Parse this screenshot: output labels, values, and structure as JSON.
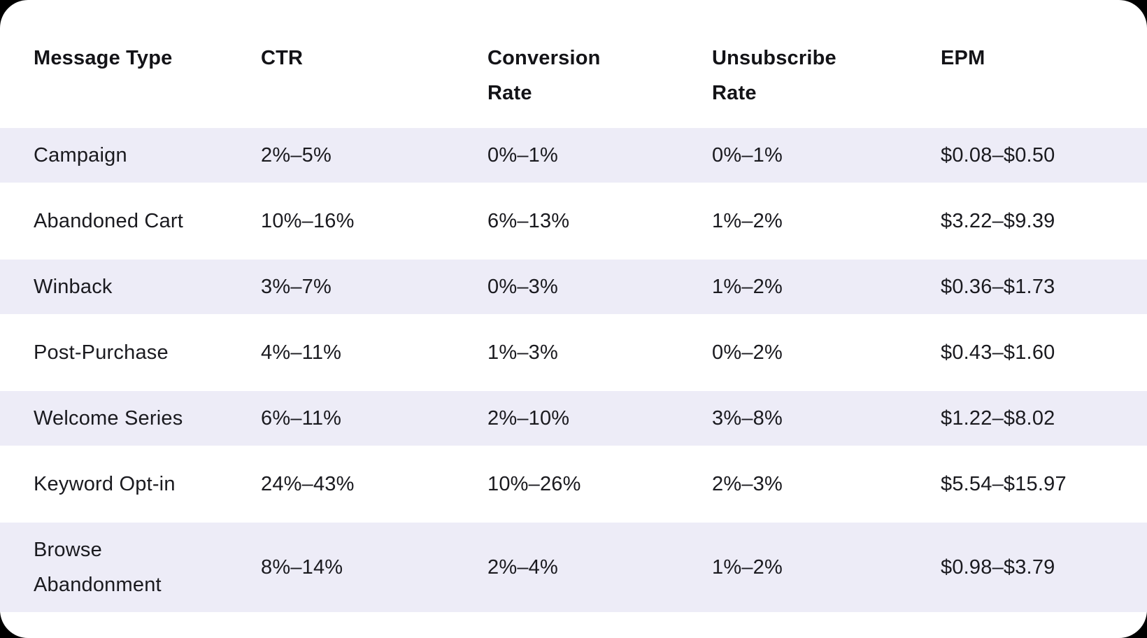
{
  "colors": {
    "page_background": "#000000",
    "card_background": "#FFFFFF",
    "row_stripe": "#EDECF7",
    "header_text": "#131317",
    "body_text": "#1A1A1F"
  },
  "chart_data": {
    "type": "table",
    "columns": [
      "Message Type",
      "CTR",
      "Conversion Rate",
      "Unsubscribe Rate",
      "EPM"
    ],
    "rows": [
      [
        "Campaign",
        "2%–5%",
        "0%–1%",
        "0%–1%",
        "$0.08–$0.50"
      ],
      [
        "Abandoned Cart",
        "10%–16%",
        "6%–13%",
        "1%–2%",
        "$3.22–$9.39"
      ],
      [
        "Winback",
        "3%–7%",
        "0%–3%",
        "1%–2%",
        "$0.36–$1.73"
      ],
      [
        "Post-Purchase",
        "4%–11%",
        "1%–3%",
        "0%–2%",
        "$0.43–$1.60"
      ],
      [
        "Welcome Series",
        "6%–11%",
        "2%–10%",
        "3%–8%",
        "$1.22–$8.02"
      ],
      [
        "Keyword Opt-in",
        "24%–43%",
        "10%–26%",
        "2%–3%",
        "$5.54–$15.97"
      ],
      [
        "Browse Abandonment",
        "8%–14%",
        "2%–4%",
        "1%–2%",
        "$0.98–$3.79"
      ]
    ],
    "layout": {
      "striped_rows": "odd",
      "grid": "off",
      "header_position": "top"
    }
  }
}
